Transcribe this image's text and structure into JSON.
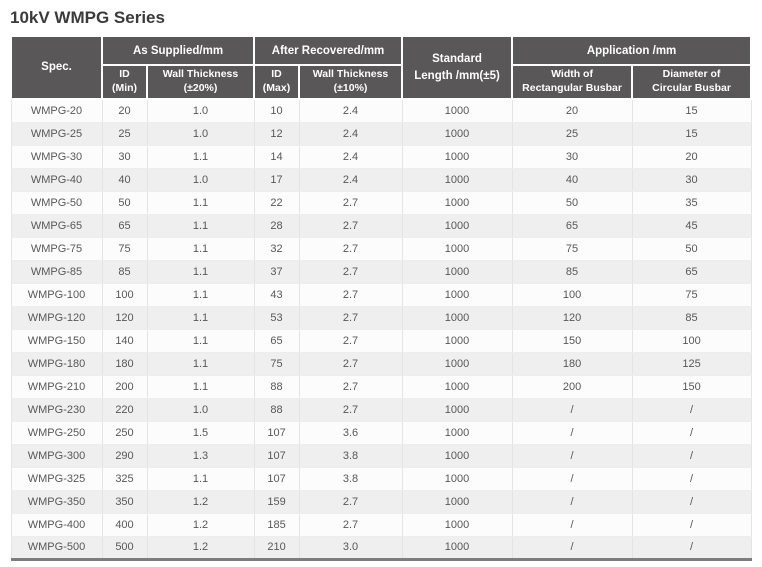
{
  "title": "10kV WMPG Series",
  "colors": {
    "header_bg": "#595757",
    "header_text": "#ffffff",
    "body_text": "#595757",
    "alt_row_bg": "#efefef",
    "bottom_border": "#7d7d7d",
    "title_color": "#3b3b3b"
  },
  "table": {
    "header": {
      "spec": "Spec.",
      "as_supplied": "As Supplied/mm",
      "after_recovered": "After Recovered/mm",
      "standard_length": "Standard\nLength /mm(±5)",
      "application": "Application /mm",
      "id_min": "ID\n(Min)",
      "wall_thickness_20": "Wall Thickness\n(±20%)",
      "id_max": "ID\n(Max)",
      "wall_thickness_10": "Wall Thickness\n(±10%)",
      "width_rect": "Width of\nRectangular Busbar",
      "dia_circ": "Diameter of\nCircular Busbar"
    },
    "rows": [
      [
        "WMPG-20",
        "20",
        "1.0",
        "10",
        "2.4",
        "1000",
        "20",
        "15"
      ],
      [
        "WMPG-25",
        "25",
        "1.0",
        "12",
        "2.4",
        "1000",
        "25",
        "15"
      ],
      [
        "WMPG-30",
        "30",
        "1.1",
        "14",
        "2.4",
        "1000",
        "30",
        "20"
      ],
      [
        "WMPG-40",
        "40",
        "1.0",
        "17",
        "2.4",
        "1000",
        "40",
        "30"
      ],
      [
        "WMPG-50",
        "50",
        "1.1",
        "22",
        "2.7",
        "1000",
        "50",
        "35"
      ],
      [
        "WMPG-65",
        "65",
        "1.1",
        "28",
        "2.7",
        "1000",
        "65",
        "45"
      ],
      [
        "WMPG-75",
        "75",
        "1.1",
        "32",
        "2.7",
        "1000",
        "75",
        "50"
      ],
      [
        "WMPG-85",
        "85",
        "1.1",
        "37",
        "2.7",
        "1000",
        "85",
        "65"
      ],
      [
        "WMPG-100",
        "100",
        "1.1",
        "43",
        "2.7",
        "1000",
        "100",
        "75"
      ],
      [
        "WMPG-120",
        "120",
        "1.1",
        "53",
        "2.7",
        "1000",
        "120",
        "85"
      ],
      [
        "WMPG-150",
        "140",
        "1.1",
        "65",
        "2.7",
        "1000",
        "150",
        "100"
      ],
      [
        "WMPG-180",
        "180",
        "1.1",
        "75",
        "2.7",
        "1000",
        "180",
        "125"
      ],
      [
        "WMPG-210",
        "200",
        "1.1",
        "88",
        "2.7",
        "1000",
        "200",
        "150"
      ],
      [
        "WMPG-230",
        "220",
        "1.0",
        "88",
        "2.7",
        "1000",
        "/",
        "/"
      ],
      [
        "WMPG-250",
        "250",
        "1.5",
        "107",
        "3.6",
        "1000",
        "/",
        "/"
      ],
      [
        "WMPG-300",
        "290",
        "1.3",
        "107",
        "3.8",
        "1000",
        "/",
        "/"
      ],
      [
        "WMPG-325",
        "325",
        "1.1",
        "107",
        "3.8",
        "1000",
        "/",
        "/"
      ],
      [
        "WMPG-350",
        "350",
        "1.2",
        "159",
        "2.7",
        "1000",
        "/",
        "/"
      ],
      [
        "WMPG-400",
        "400",
        "1.2",
        "185",
        "2.7",
        "1000",
        "/",
        "/"
      ],
      [
        "WMPG-500",
        "500",
        "1.2",
        "210",
        "3.0",
        "1000",
        "/",
        "/"
      ]
    ],
    "column_names": [
      "spec",
      "id-min",
      "wall-thickness-20",
      "id-max",
      "wall-thickness-10",
      "standard-length",
      "width-rect-busbar",
      "dia-circ-busbar"
    ]
  }
}
